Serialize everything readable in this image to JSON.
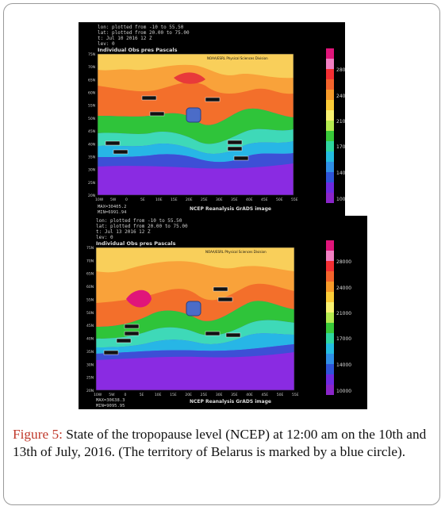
{
  "figure": {
    "label": "Figure 5:",
    "caption": "State of the tropopause level (NCEP) at 12:00 am on the 10th and 13th of July, 2016. (The territory of Belarus is marked by a blue circle)."
  },
  "panels": [
    {
      "header": [
        "lon: plotted from -10 to 55.50",
        "lat: plotted from 20.00 to 75.00",
        "t: Jul 10 2016 12 Z",
        "lev: 0"
      ],
      "plot_title": "Individual Obs pres Pascals",
      "credit": "NOAA/ESRL Physical Sciences Division",
      "footer_left": [
        "MAX=30405.2",
        "MIN=6991.94"
      ],
      "footer_right": "NCEP Reanalysis GrADS image"
    },
    {
      "header": [
        "lon: plotted from -10 to 55.50",
        "lat: plotted from 20.00 to 75.00",
        "t: Jul 13 2016 12 Z",
        "lev: 0"
      ],
      "plot_title": "Individual Obs pres Pascals",
      "credit": "NOAA/ESRL Physical Sciences Division",
      "footer_left": [
        "MAX=30638.3",
        "MIN=9095.95"
      ],
      "footer_right": "NCEP Reanalysis GrADS image"
    }
  ],
  "y_ticks": [
    "75N",
    "70N",
    "65N",
    "60N",
    "55N",
    "50N",
    "45N",
    "40N",
    "35N",
    "30N",
    "25N",
    "20N"
  ],
  "x_ticks": [
    "10W",
    "5W",
    "0",
    "5E",
    "10E",
    "15E",
    "20E",
    "25E",
    "30E",
    "35E",
    "40E",
    "45E",
    "50E",
    "55E"
  ],
  "colorbar_labels": [
    "28000",
    "24000",
    "21000",
    "17000",
    "14000",
    "10000"
  ],
  "colorbar_colors": [
    "#e0157a",
    "#f27fc2",
    "#f42f33",
    "#f4642c",
    "#f79b2a",
    "#fbcc38",
    "#f9f271",
    "#b4ea4f",
    "#38c93a",
    "#2fd6a0",
    "#24bde0",
    "#2f8fe6",
    "#2f54d8",
    "#6d2ae0",
    "#8a25c9"
  ],
  "colors": {
    "belarus_marker": "#4b6cc8",
    "caption_label": "#c0392b"
  }
}
